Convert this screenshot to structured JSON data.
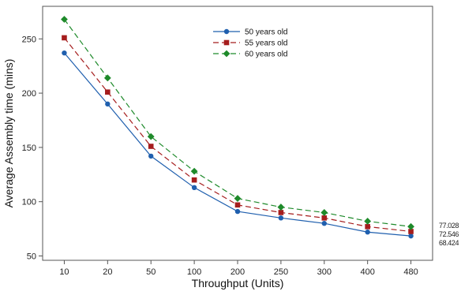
{
  "chart_data": {
    "type": "line",
    "title": "",
    "xlabel": "Throughput (Units)",
    "ylabel": "Average Assembly time (mins)",
    "categories": [
      "10",
      "20",
      "50",
      "100",
      "200",
      "250",
      "300",
      "400",
      "480"
    ],
    "ylim": [
      46,
      280
    ],
    "yticks": [
      50,
      100,
      150,
      200,
      250
    ],
    "grid": false,
    "legend_position": "top-center",
    "series": [
      {
        "name": "50 years old",
        "color": "#1f5fae",
        "marker": "circle",
        "line_style": "solid",
        "values": [
          237,
          190,
          142,
          113,
          91,
          85,
          80,
          72,
          68.424
        ]
      },
      {
        "name": "55 years old",
        "color": "#a51d1d",
        "marker": "square",
        "line_style": "dashed",
        "values": [
          251,
          201,
          151,
          120,
          97,
          90,
          85,
          77,
          72.546
        ]
      },
      {
        "name": "60 years old",
        "color": "#1e8a2a",
        "marker": "diamond",
        "line_style": "dashed",
        "values": [
          268,
          214,
          160,
          128,
          103,
          95,
          90,
          82,
          77.028
        ]
      }
    ],
    "end_labels": [
      "77.028",
      "72.546",
      "68.424"
    ]
  }
}
